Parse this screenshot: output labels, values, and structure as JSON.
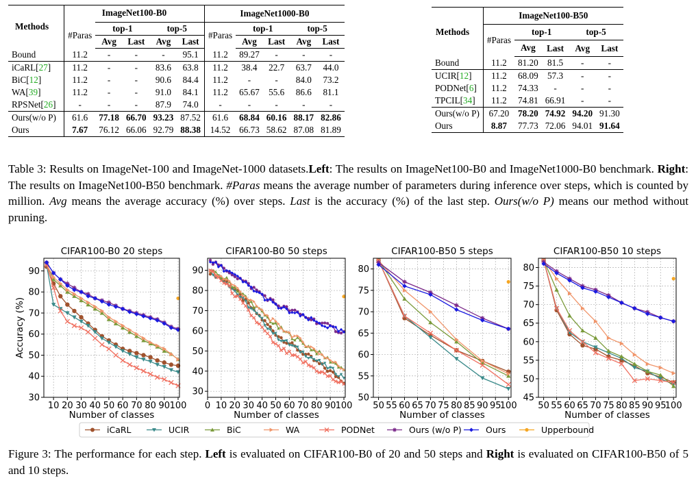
{
  "table_left": {
    "groups": [
      "ImageNet100-B0",
      "ImageNet1000-B0"
    ],
    "methods_header": "Methods",
    "paras_header": "#Paras",
    "top1": "top-1",
    "top5": "top-5",
    "avg": "Avg",
    "last": "Last",
    "rows": [
      [
        "Bound",
        "11.2",
        "-",
        "-",
        "-",
        "95.1",
        "11.2",
        "89.27",
        "-",
        "-",
        "-"
      ],
      [
        "iCaRL[27]",
        "11.2",
        "-",
        "-",
        "83.6",
        "63.8",
        "11.2",
        "38.4",
        "22.7",
        "63.7",
        "44.0"
      ],
      [
        "BiC[12]",
        "11.2",
        "-",
        "-",
        "90.6",
        "84.4",
        "11.2",
        "-",
        "-",
        "84.0",
        "73.2"
      ],
      [
        "WA[39]",
        "11.2",
        "-",
        "-",
        "91.0",
        "84.1",
        "11.2",
        "65.67",
        "55.6",
        "86.6",
        "81.1"
      ],
      [
        "RPSNet[26]",
        "-",
        "-",
        "-",
        "87.9",
        "74.0",
        "-",
        "-",
        "-",
        "-",
        "-"
      ],
      [
        "Ours(w/o P)",
        "61.6",
        "77.18",
        "66.70",
        "93.23",
        "87.52",
        "61.6",
        "68.84",
        "60.16",
        "88.17",
        "82.86"
      ],
      [
        "Ours",
        "7.67",
        "76.12",
        "66.06",
        "92.79",
        "88.38",
        "14.52",
        "66.73",
        "58.62",
        "87.08",
        "81.89"
      ]
    ]
  },
  "table_right": {
    "group": "ImageNet100-B50",
    "methods_header": "Methods",
    "paras_header": "#Paras",
    "top1": "top-1",
    "top5": "top-5",
    "avg": "Avg",
    "last": "Last",
    "rows": [
      [
        "Bound",
        "11.2",
        "81.20",
        "81.5",
        "-",
        "-"
      ],
      [
        "UCIR[12]",
        "11.2",
        "68.09",
        "57.3",
        "-",
        "-"
      ],
      [
        "PODNet[6]",
        "11.2",
        "74.33",
        "-",
        "-",
        "-"
      ],
      [
        "TPCIL[34]",
        "11.2",
        "74.81",
        "66.91",
        "-",
        "-"
      ],
      [
        "Ours(w/o P)",
        "67.20",
        "78.20",
        "74.92",
        "94.20",
        "91.30"
      ],
      [
        "Ours",
        "8.87",
        "77.73",
        "72.06",
        "94.01",
        "91.64"
      ]
    ]
  },
  "table_caption": {
    "t1": "Table 3: Results on ImageNet-100 and ImageNet-1000 datasets.",
    "left_b": "Left",
    "t2": ": The results on ImageNet100-B0 and ImageNet1000-B0 benchmark. ",
    "right_b": "Right",
    "t3": ": The results on ImageNet100-B50 benchmark. ",
    "paras_i": "#Paras",
    "t4": " means the average number of parameters during inference over steps, which is counted by million. ",
    "avg_i": "Avg",
    "t5": " means the average accuracy (%) over steps. ",
    "last_i": "Last",
    "t6": " is the accuracy (%) of the last step. ",
    "ours_i": "Ours(w/o P)",
    "t7": " means our method without pruning."
  },
  "figure_caption": {
    "t1": "Figure 3: The performance for each step. ",
    "left_b": "Left",
    "t2": " is evaluated on CIFAR100-B0 of 20 and 50 steps and ",
    "right_b": "Right",
    "t3": " is evaluated on CIFAR100-B50 of 5 and 10 steps."
  },
  "legend": [
    {
      "name": "iCaRL",
      "color": "#a0522d",
      "marker": "circle"
    },
    {
      "name": "UCIR",
      "color": "#3a8a8a",
      "marker": "tri-down"
    },
    {
      "name": "BiC",
      "color": "#7a9a3a",
      "marker": "tri-up"
    },
    {
      "name": "WA",
      "color": "#f0956a",
      "marker": "tri-right"
    },
    {
      "name": "PODNet",
      "color": "#f07060",
      "marker": "x"
    },
    {
      "name": "Ours (w/o P)",
      "color": "#7b2a8a",
      "marker": "star"
    },
    {
      "name": "Ours",
      "color": "#1a1ae0",
      "marker": "plus"
    },
    {
      "name": "Upperbound",
      "color": "#f5a623",
      "marker": "dot"
    }
  ],
  "chart_data": [
    {
      "type": "line",
      "title": "CIFAR100-B0 20 steps",
      "xlabel": "Number of classes",
      "ylabel": "Accuracy (%)",
      "xlim": [
        3,
        101
      ],
      "ylim": [
        30,
        96
      ],
      "xticks": [
        10,
        20,
        30,
        40,
        50,
        60,
        70,
        80,
        90,
        100
      ],
      "yticks": [
        30,
        40,
        50,
        60,
        70,
        80,
        90
      ],
      "grid": true,
      "x": [
        5,
        10,
        15,
        20,
        25,
        30,
        35,
        40,
        45,
        50,
        55,
        60,
        65,
        70,
        75,
        80,
        85,
        90,
        95,
        100
      ],
      "series": [
        {
          "name": "iCaRL",
          "values": [
            92,
            84,
            78,
            74,
            71,
            68,
            65,
            62,
            59,
            57,
            55,
            53,
            52,
            51,
            50,
            49,
            47.5,
            46.5,
            45.5,
            45
          ]
        },
        {
          "name": "UCIR",
          "values": [
            93,
            74,
            72,
            70,
            68,
            66,
            64,
            61,
            58,
            56,
            54,
            52,
            50.5,
            49,
            48,
            47,
            45.5,
            44.5,
            43,
            42
          ]
        },
        {
          "name": "BiC",
          "values": [
            93,
            86,
            83,
            80,
            78,
            76,
            74,
            72,
            70,
            67,
            65,
            63,
            61,
            59,
            57,
            55.5,
            54,
            52,
            50.5,
            48
          ]
        },
        {
          "name": "WA",
          "values": [
            93,
            87,
            84,
            81,
            79,
            77,
            75,
            73,
            71,
            68,
            66,
            64,
            62,
            60,
            58,
            56,
            54.5,
            53,
            50.5,
            48
          ]
        },
        {
          "name": "PODNet",
          "values": [
            93,
            82,
            71,
            66,
            64,
            63,
            61,
            58,
            55,
            53,
            50,
            47.5,
            45.5,
            44,
            42.5,
            41,
            39.5,
            38.5,
            37,
            35.5
          ]
        },
        {
          "name": "Ours (w/o P)",
          "values": [
            94,
            89,
            86,
            84,
            82,
            80,
            79,
            77,
            76,
            75,
            73.5,
            72,
            71,
            70,
            69,
            68,
            67,
            65.5,
            63.5,
            62.5
          ]
        },
        {
          "name": "Ours",
          "values": [
            94,
            89,
            86,
            83,
            81,
            80,
            78,
            77,
            75.5,
            74,
            73,
            72,
            70.5,
            69.5,
            68.5,
            67.5,
            66.5,
            65,
            63,
            62
          ]
        }
      ],
      "upperbound": {
        "x": 100,
        "y": 77
      }
    },
    {
      "type": "line",
      "title": "CIFAR100-B0 50 steps",
      "xlabel": "Number of classes",
      "xlim": [
        0,
        101
      ],
      "ylim": [
        27,
        96
      ],
      "xticks": [
        0,
        10,
        20,
        30,
        40,
        50,
        60,
        70,
        80,
        90,
        100
      ],
      "yticks": [
        30,
        40,
        50,
        60,
        70,
        80,
        90
      ],
      "grid": true,
      "x_start": 2,
      "x_step": 2,
      "series": [
        {
          "name": "iCaRL",
          "start": 93,
          "end": 35,
          "mid": 58
        },
        {
          "name": "UCIR",
          "start": 93,
          "end": 37,
          "mid": 57
        },
        {
          "name": "BiC",
          "start": 93,
          "end": 41,
          "mid": 62
        },
        {
          "name": "WA",
          "start": 93,
          "end": 41,
          "mid": 63
        },
        {
          "name": "PODNet",
          "start": 93,
          "end": 33,
          "mid": 52
        },
        {
          "name": "Ours (w/o P)",
          "start": 96,
          "end": 59,
          "mid": 73
        },
        {
          "name": "Ours",
          "start": 96,
          "end": 59,
          "mid": 72
        }
      ],
      "upperbound": {
        "x": 100,
        "y": 77
      }
    },
    {
      "type": "line",
      "title": "CIFAR100-B50 5 steps",
      "xlabel": "Number of classes",
      "xlim": [
        48,
        101
      ],
      "ylim": [
        50,
        82.5
      ],
      "xticks": [
        50,
        55,
        60,
        65,
        70,
        75,
        80,
        85,
        90,
        95,
        100
      ],
      "yticks": [
        50,
        55,
        60,
        65,
        70,
        75,
        80
      ],
      "grid": true,
      "x": [
        50,
        60,
        70,
        80,
        90,
        100
      ],
      "series": [
        {
          "name": "iCaRL",
          "values": [
            82,
            68.5,
            64.5,
            61,
            58.5,
            56
          ]
        },
        {
          "name": "UCIR",
          "values": [
            82,
            69,
            64,
            59,
            54.5,
            52
          ]
        },
        {
          "name": "BiC",
          "values": [
            82,
            73,
            67.5,
            63,
            58,
            55
          ]
        },
        {
          "name": "WA",
          "values": [
            82,
            75,
            70,
            63.5,
            58.5,
            55.5
          ]
        },
        {
          "name": "PODNet",
          "values": [
            82,
            69,
            65,
            61,
            57.5,
            53
          ]
        },
        {
          "name": "Ours (w/o P)",
          "values": [
            81.5,
            77,
            74.5,
            71.5,
            68.5,
            66
          ]
        },
        {
          "name": "Ours",
          "values": [
            81,
            76,
            74,
            70.5,
            68,
            66
          ]
        }
      ],
      "upperbound": {
        "x": 100,
        "y": 77
      }
    },
    {
      "type": "line",
      "title": "CIFAR100-B50 10 steps",
      "xlabel": "Number of classes",
      "xlim": [
        48,
        101
      ],
      "ylim": [
        45,
        82.5
      ],
      "xticks": [
        50,
        55,
        60,
        65,
        70,
        75,
        80,
        85,
        90,
        95,
        100
      ],
      "yticks": [
        45,
        50,
        55,
        60,
        65,
        70,
        75,
        80
      ],
      "grid": true,
      "x": [
        50,
        55,
        60,
        65,
        70,
        75,
        80,
        85,
        90,
        95,
        100
      ],
      "series": [
        {
          "name": "iCaRL",
          "values": [
            82,
            68.5,
            62,
            59,
            58,
            56,
            55,
            53.5,
            51.5,
            50.5,
            49
          ]
        },
        {
          "name": "UCIR",
          "values": [
            82,
            69,
            62.5,
            60,
            58.5,
            57,
            55.5,
            53,
            52,
            50,
            48.5
          ]
        },
        {
          "name": "BiC",
          "values": [
            82,
            74,
            67,
            63,
            61,
            57.5,
            56,
            54,
            52,
            51,
            48
          ]
        },
        {
          "name": "WA",
          "values": [
            82,
            77,
            73,
            69,
            65.5,
            61,
            59.5,
            56.5,
            54,
            53,
            51.5
          ]
        },
        {
          "name": "PODNet",
          "values": [
            82,
            69,
            63,
            60,
            57,
            55.5,
            54,
            49.5,
            50,
            49.5,
            49
          ]
        },
        {
          "name": "Ours (w/o P)",
          "values": [
            81.5,
            79,
            77,
            75,
            74,
            72.5,
            70.5,
            69,
            68,
            66.5,
            65.5
          ]
        },
        {
          "name": "Ours",
          "values": [
            81,
            78.5,
            76.5,
            74.5,
            73.5,
            72,
            70.5,
            69,
            67.5,
            66.5,
            65.5
          ]
        }
      ],
      "upperbound": {
        "x": 100,
        "y": 77
      }
    }
  ]
}
